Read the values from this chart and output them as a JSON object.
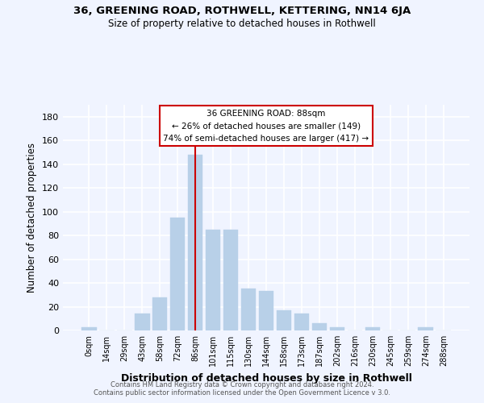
{
  "title1": "36, GREENING ROAD, ROTHWELL, KETTERING, NN14 6JA",
  "title2": "Size of property relative to detached houses in Rothwell",
  "xlabel": "Distribution of detached houses by size in Rothwell",
  "ylabel": "Number of detached properties",
  "footer1": "Contains HM Land Registry data © Crown copyright and database right 2024.",
  "footer2": "Contains public sector information licensed under the Open Government Licence v 3.0.",
  "bar_labels": [
    "0sqm",
    "14sqm",
    "29sqm",
    "43sqm",
    "58sqm",
    "72sqm",
    "86sqm",
    "101sqm",
    "115sqm",
    "130sqm",
    "144sqm",
    "158sqm",
    "173sqm",
    "187sqm",
    "202sqm",
    "216sqm",
    "230sqm",
    "245sqm",
    "259sqm",
    "274sqm",
    "288sqm"
  ],
  "bar_values": [
    3,
    0,
    0,
    14,
    28,
    95,
    148,
    85,
    85,
    35,
    33,
    17,
    14,
    6,
    3,
    0,
    3,
    0,
    0,
    3,
    0
  ],
  "bar_color": "#b8d0e8",
  "bar_edge_color": "#b8d0e8",
  "vline_x": 6,
  "vline_color": "#cc0000",
  "ylim": [
    0,
    190
  ],
  "yticks": [
    0,
    20,
    40,
    60,
    80,
    100,
    120,
    140,
    160,
    180
  ],
  "annotation_title": "36 GREENING ROAD: 88sqm",
  "annotation_line1": "← 26% of detached houses are smaller (149)",
  "annotation_line2": "74% of semi-detached houses are larger (417) →",
  "background_color": "#f0f4ff"
}
